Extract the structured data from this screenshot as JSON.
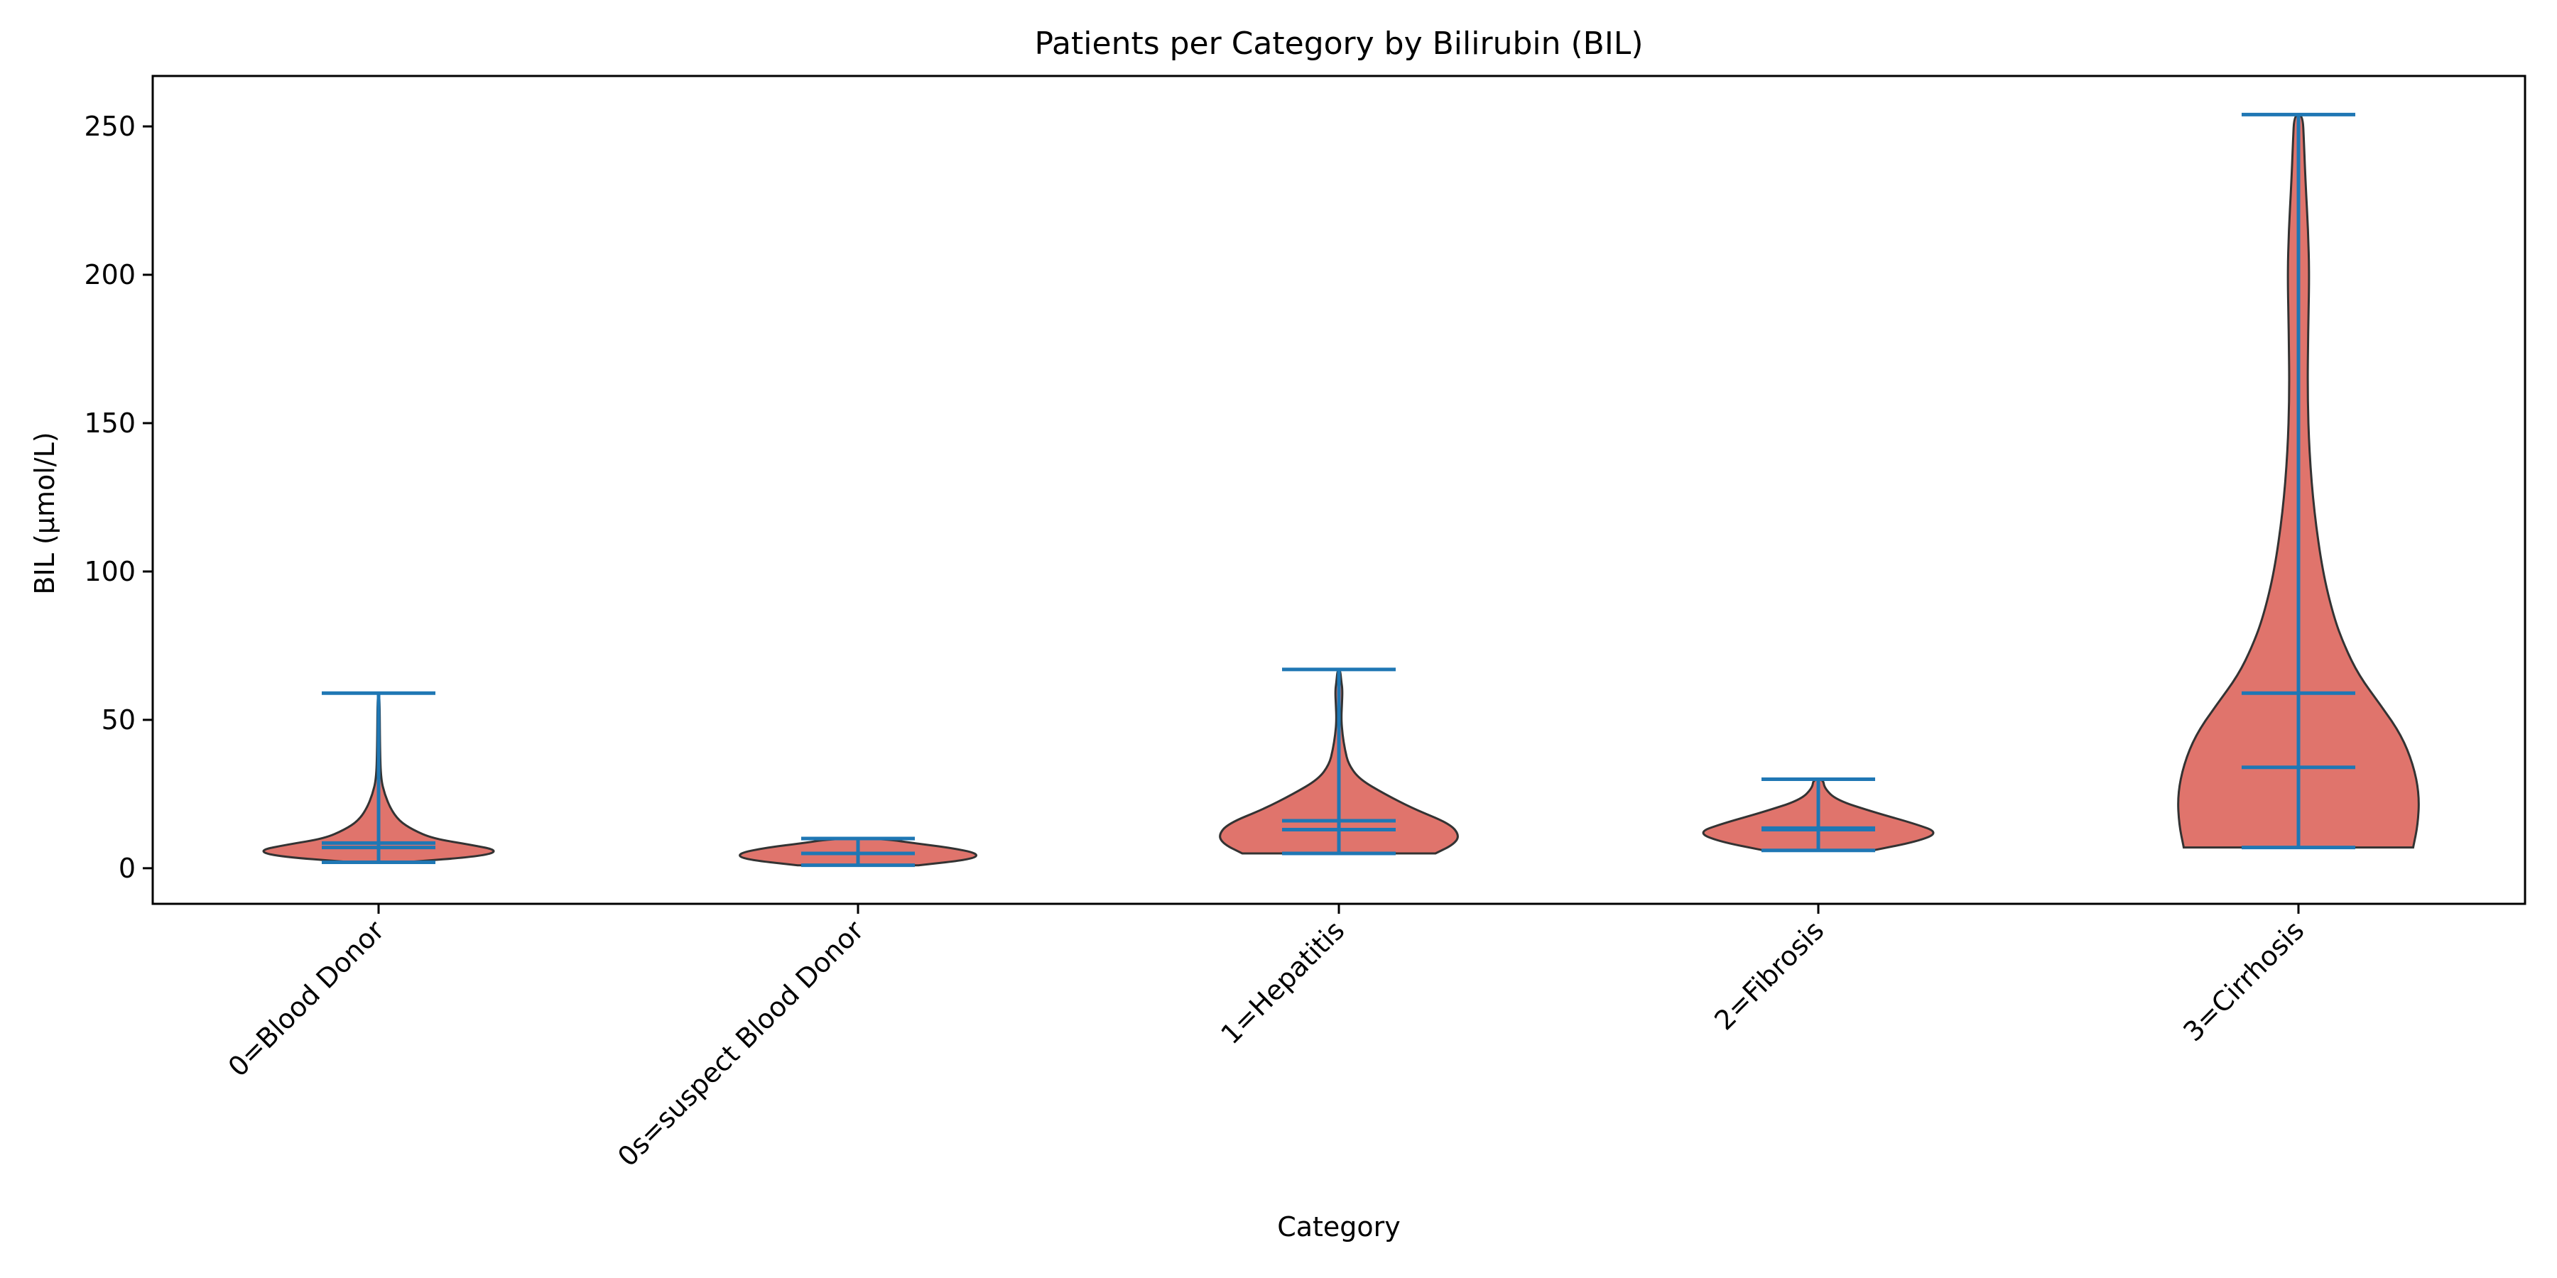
{
  "chart_data": {
    "type": "violin",
    "title": "Patients per Category by Bilirubin (BIL)",
    "xlabel": "Category",
    "ylabel": "BIL (µmol/L)",
    "ylim": [
      -12,
      267
    ],
    "yticks": [
      0,
      50,
      100,
      150,
      200,
      250
    ],
    "grid": false,
    "colors": {
      "violin_fill": "#e0746c",
      "violin_edge": "#333333",
      "stat_lines": "#1f77b4"
    },
    "categories": [
      "0=Blood Donor",
      "0s=suspect Blood Donor",
      "1=Hepatitis",
      "2=Fibrosis",
      "3=Cirrhosis"
    ],
    "series": [
      {
        "category": "0=Blood Donor",
        "min": 2,
        "max": 59,
        "median": 7,
        "mean": 8.5,
        "density": [
          [
            2,
            0.22
          ],
          [
            4,
            0.85
          ],
          [
            6,
            1.0
          ],
          [
            8,
            0.75
          ],
          [
            10,
            0.45
          ],
          [
            13,
            0.28
          ],
          [
            16,
            0.17
          ],
          [
            20,
            0.1
          ],
          [
            25,
            0.05
          ],
          [
            30,
            0.02
          ],
          [
            40,
            0.012
          ],
          [
            59,
            0.008
          ]
        ]
      },
      {
        "category": "0s=suspect Blood Donor",
        "min": 1,
        "max": 10,
        "median": 5,
        "mean": 5,
        "density": [
          [
            1,
            0.5
          ],
          [
            3,
            0.95
          ],
          [
            5,
            1.0
          ],
          [
            7,
            0.75
          ],
          [
            8.5,
            0.45
          ],
          [
            10,
            0.2
          ]
        ]
      },
      {
        "category": "1=Hepatitis",
        "min": 5,
        "max": 67,
        "median": 13,
        "mean": 16,
        "density": [
          [
            5,
            0.8
          ],
          [
            8,
            0.95
          ],
          [
            11,
            1.0
          ],
          [
            15,
            0.92
          ],
          [
            20,
            0.62
          ],
          [
            25,
            0.38
          ],
          [
            30,
            0.17
          ],
          [
            35,
            0.08
          ],
          [
            40,
            0.05
          ],
          [
            45,
            0.03
          ],
          [
            50,
            0.02
          ],
          [
            55,
            0.025
          ],
          [
            60,
            0.03
          ],
          [
            63,
            0.02
          ],
          [
            67,
            0.01
          ]
        ]
      },
      {
        "category": "2=Fibrosis",
        "min": 6,
        "max": 30,
        "median": 13,
        "mean": 13.5,
        "density": [
          [
            6,
            0.45
          ],
          [
            9,
            0.82
          ],
          [
            12,
            1.0
          ],
          [
            15,
            0.8
          ],
          [
            19,
            0.45
          ],
          [
            23,
            0.15
          ],
          [
            27,
            0.05
          ],
          [
            30,
            0.04
          ]
        ]
      },
      {
        "category": "3=Cirrhosis",
        "min": 7,
        "max": 254,
        "median": 34,
        "mean": 59,
        "density": [
          [
            7,
            0.95
          ],
          [
            15,
            0.99
          ],
          [
            25,
            1.0
          ],
          [
            35,
            0.95
          ],
          [
            45,
            0.85
          ],
          [
            55,
            0.68
          ],
          [
            65,
            0.5
          ],
          [
            75,
            0.38
          ],
          [
            85,
            0.29
          ],
          [
            100,
            0.2
          ],
          [
            120,
            0.13
          ],
          [
            140,
            0.09
          ],
          [
            160,
            0.075
          ],
          [
            180,
            0.08
          ],
          [
            200,
            0.09
          ],
          [
            215,
            0.08
          ],
          [
            230,
            0.06
          ],
          [
            245,
            0.045
          ],
          [
            254,
            0.035
          ]
        ]
      }
    ]
  }
}
